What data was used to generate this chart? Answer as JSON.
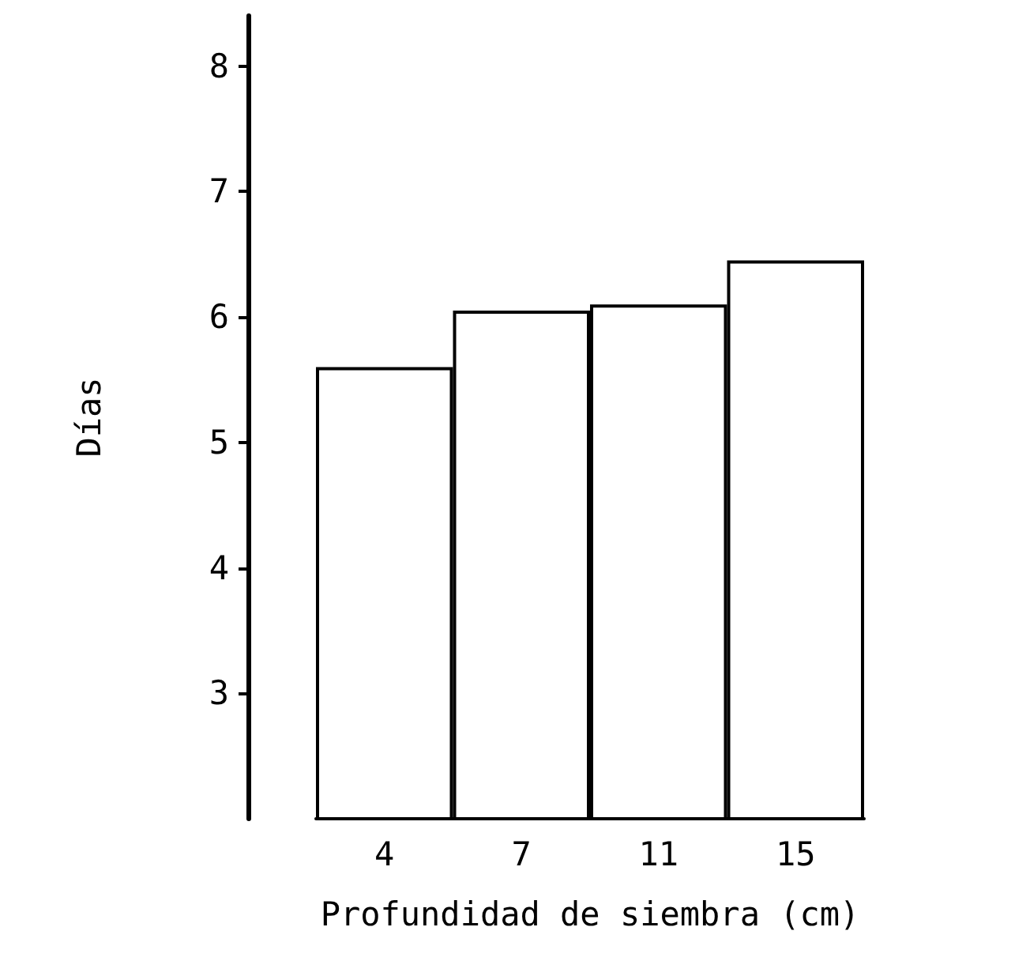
{
  "chart_data": {
    "type": "bar",
    "xlabel": "Profundidad de siembra (cm)",
    "ylabel": "Días",
    "categories": [
      "4",
      "7",
      "11",
      "15"
    ],
    "values": [
      5.6,
      6.05,
      6.1,
      6.45
    ],
    "color": "#ffffff",
    "ylim": [
      2,
      8.4
    ],
    "yticks": [
      3,
      4,
      5,
      6,
      7,
      8
    ],
    "grid": false
  }
}
